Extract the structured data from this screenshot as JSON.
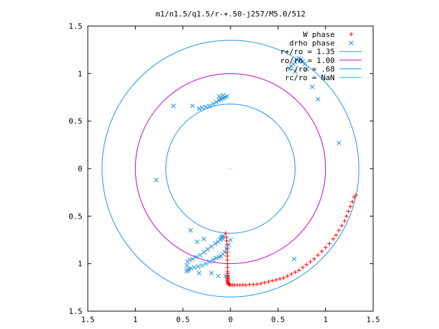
{
  "chart_data": {
    "type": "scatter",
    "title": "m1/n1.5/q1.5/r-+.50-j257/M5.0/512",
    "xlim": [
      -1.5,
      1.5
    ],
    "ylim": [
      -1.5,
      1.5
    ],
    "x_ticks": [
      "1.5",
      "1",
      "0.5",
      "0",
      "0.5",
      "1",
      "1.5"
    ],
    "y_ticks": [
      "1.5",
      "1",
      "0.5",
      "0",
      "0.5",
      "1",
      "1.5"
    ],
    "legend_position": "top-right",
    "series": [
      {
        "name": "W phase",
        "marker": "+",
        "color": "#ff0000",
        "x": [
          -0.05,
          -0.045,
          -0.04,
          -0.037,
          -0.035,
          -0.034,
          -0.033,
          -0.033,
          -0.032,
          -0.032,
          -0.031,
          -0.031,
          -0.031,
          -0.03,
          -0.03,
          -0.03,
          -0.03,
          -0.03,
          -0.03,
          -0.029,
          -0.028,
          -0.025,
          -0.02,
          -0.01,
          0.0,
          0.02,
          0.04,
          0.07,
          0.1,
          0.13,
          0.16,
          0.2,
          0.24,
          0.28,
          0.32,
          0.36,
          0.4,
          0.44,
          0.48,
          0.52,
          0.56,
          0.6,
          0.64,
          0.68,
          0.72,
          0.76,
          0.8,
          0.84,
          0.88,
          0.92,
          0.96,
          1.0,
          1.04,
          1.08,
          1.11,
          1.14,
          1.17,
          1.2,
          1.22,
          1.24,
          1.26,
          1.28,
          1.3,
          1.32
        ],
        "y": [
          -0.68,
          -0.72,
          -0.76,
          -0.8,
          -0.84,
          -0.88,
          -0.92,
          -0.96,
          -1.0,
          -1.04,
          -1.08,
          -1.1,
          -1.12,
          -1.13,
          -1.14,
          -1.15,
          -1.16,
          -1.17,
          -1.18,
          -1.19,
          -1.2,
          -1.21,
          -1.215,
          -1.22,
          -1.225,
          -1.225,
          -1.225,
          -1.225,
          -1.225,
          -1.225,
          -1.225,
          -1.22,
          -1.22,
          -1.215,
          -1.21,
          -1.2,
          -1.19,
          -1.18,
          -1.17,
          -1.16,
          -1.15,
          -1.13,
          -1.11,
          -1.09,
          -1.07,
          -1.04,
          -1.01,
          -0.98,
          -0.95,
          -0.91,
          -0.87,
          -0.83,
          -0.79,
          -0.74,
          -0.7,
          -0.65,
          -0.6,
          -0.55,
          -0.5,
          -0.45,
          -0.4,
          -0.35,
          -0.3,
          -0.28
        ]
      },
      {
        "name": "drho phase",
        "marker": "x",
        "color": "#1e90e0",
        "x": [
          0.0,
          -0.02,
          -0.04,
          -0.06,
          -0.08,
          -0.1,
          -0.12,
          -0.15,
          -0.18,
          -0.22,
          -0.26,
          -0.3,
          -0.34,
          -0.38,
          -0.42,
          -0.44,
          -0.45,
          -0.46,
          -0.46,
          -0.45,
          -0.43,
          -0.4,
          -0.36,
          -0.32,
          -0.28,
          -0.24,
          -0.2,
          -0.16,
          -0.13,
          -0.11,
          -0.1,
          -0.09,
          -0.085,
          -0.08,
          -0.2,
          -0.33,
          -0.04,
          -0.06,
          -0.08,
          -0.1,
          -0.12,
          -0.15,
          -0.18,
          -0.22,
          -0.26,
          -0.3,
          -0.33,
          -0.08,
          -0.12,
          -0.4,
          -0.6,
          -0.78,
          0.68,
          0.62,
          0.64,
          0.66,
          0.68,
          0.7,
          0.72,
          0.74,
          0.76,
          0.78,
          0.8,
          0.86,
          0.92,
          1.14,
          0.67,
          -0.42,
          -0.28,
          -0.35,
          -0.05,
          -0.13
        ],
        "y": [
          -0.75,
          -0.8,
          -0.84,
          -0.88,
          -0.9,
          -0.92,
          -0.93,
          -0.94,
          -0.96,
          -0.98,
          -1.0,
          -1.02,
          -1.03,
          -1.04,
          -1.05,
          -1.06,
          -1.07,
          -1.08,
          -1.02,
          -0.98,
          -0.96,
          -0.95,
          -0.93,
          -0.91,
          -0.88,
          -0.85,
          -0.82,
          -0.79,
          -0.77,
          -0.75,
          -0.74,
          -0.73,
          -0.72,
          -0.71,
          -1.1,
          -1.1,
          0.76,
          0.75,
          0.74,
          0.73,
          0.72,
          0.7,
          0.68,
          0.66,
          0.65,
          0.64,
          0.63,
          0.77,
          0.76,
          0.66,
          0.66,
          -0.12,
          1.02,
          1.05,
          1.08,
          1.1,
          1.12,
          1.14,
          1.16,
          1.15,
          1.13,
          1.1,
          1.05,
          0.86,
          0.73,
          0.27,
          -0.95,
          -0.65,
          -0.74,
          -0.77,
          -1.13,
          -1.13
        ]
      },
      {
        "name": "r+/ro = 1.35",
        "type": "circle",
        "radius": 1.35,
        "color": "#1e90e0"
      },
      {
        "name": "ro/ro = 1.00",
        "type": "circle",
        "radius": 1.0,
        "color": "#c000c0"
      },
      {
        "name": "r-/ro = .68",
        "type": "circle",
        "radius": 0.68,
        "color": "#1e90e0"
      },
      {
        "name": "rc/ro = NaN",
        "type": "circle",
        "radius": null,
        "color": "#00c0ff"
      }
    ]
  }
}
